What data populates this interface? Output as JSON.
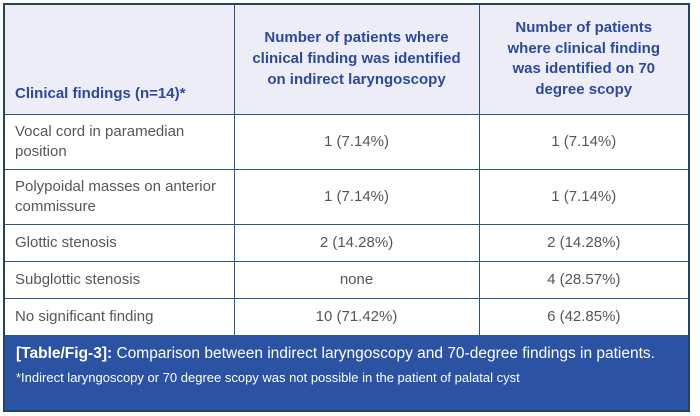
{
  "table": {
    "columns": [
      {
        "label": "Clinical findings (n=14)*"
      },
      {
        "label": "Number of patients where clinical finding was identified on indirect laryngoscopy"
      },
      {
        "label": "Number of patients where clinical finding was identified on 70 degree scopy"
      }
    ],
    "rows": [
      {
        "finding": "Vocal cord in paramedian position",
        "indirect": "1 (7.14%)",
        "scopy70": "1 (7.14%)"
      },
      {
        "finding": "Polypoidal masses on anterior commissure",
        "indirect": "1 (7.14%)",
        "scopy70": "1 (7.14%)"
      },
      {
        "finding": "Glottic stenosis",
        "indirect": "2 (14.28%)",
        "scopy70": "2 (14.28%)"
      },
      {
        "finding": "Subglottic stenosis",
        "indirect": "none",
        "scopy70": "4 (28.57%)"
      },
      {
        "finding": "No significant finding",
        "indirect": "10 (71.42%)",
        "scopy70": "6 (42.85%)"
      }
    ]
  },
  "caption": {
    "label": "[Table/Fig-3]:",
    "text": " Comparison between indirect laryngoscopy and 70-degree findings in patients.",
    "footnote": "*Indirect laryngoscopy or 70 degree scopy was not possible in the patient of palatal cyst"
  },
  "colors": {
    "header_bg": "#ecedf7",
    "header_text": "#2c4a99",
    "body_text": "#55565a",
    "inner_border": "#2b5385",
    "outer_border": "#254465",
    "caption_bg": "#2b52a3",
    "caption_text": "#ffffff"
  }
}
